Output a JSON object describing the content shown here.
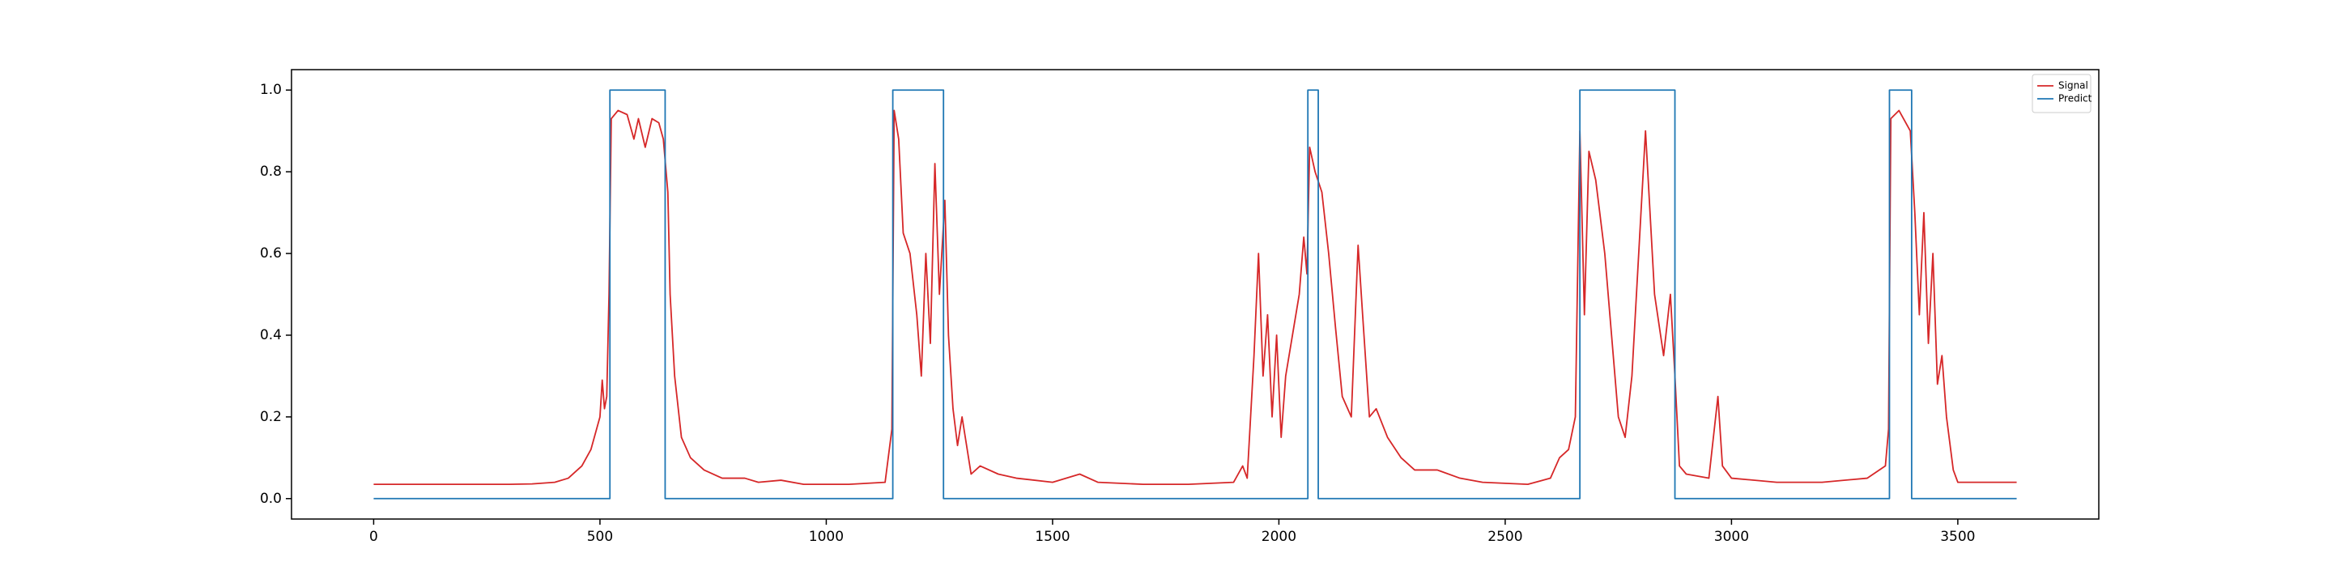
{
  "chart_data": {
    "type": "line",
    "xlim": [
      -181.5,
      3811.5
    ],
    "xticks": [
      0,
      500,
      1000,
      1500,
      2000,
      2500,
      3000,
      3500
    ],
    "ylim": [
      -0.05,
      1.05
    ],
    "yticks": [
      {
        "value": 0,
        "label": "0.0"
      },
      {
        "value": 0.2,
        "label": "0.2"
      },
      {
        "value": 0.4,
        "label": "0.4"
      },
      {
        "value": 0.6,
        "label": "0.6"
      },
      {
        "value": 0.8,
        "label": "0.8"
      },
      {
        "value": 1,
        "label": "1.0"
      }
    ],
    "grid": false,
    "legend": "upper right",
    "series": [
      {
        "name": "Signal",
        "color": "#d62728",
        "x": [
          0,
          100,
          200,
          300,
          350,
          400,
          430,
          460,
          480,
          500,
          505,
          510,
          515,
          520,
          525,
          540,
          560,
          575,
          585,
          600,
          615,
          630,
          640,
          650,
          655,
          665,
          680,
          700,
          730,
          770,
          820,
          850,
          900,
          950,
          1050,
          1130,
          1145,
          1150,
          1160,
          1170,
          1185,
          1200,
          1210,
          1220,
          1230,
          1240,
          1250,
          1262,
          1270,
          1280,
          1290,
          1300,
          1320,
          1340,
          1380,
          1420,
          1500,
          1560,
          1600,
          1700,
          1800,
          1900,
          1920,
          1930,
          1945,
          1955,
          1965,
          1975,
          1985,
          1995,
          2005,
          2015,
          2030,
          2045,
          2055,
          2062,
          2068,
          2080,
          2095,
          2110,
          2125,
          2140,
          2160,
          2175,
          2185,
          2200,
          2215,
          2240,
          2270,
          2300,
          2350,
          2400,
          2450,
          2550,
          2600,
          2620,
          2640,
          2655,
          2665,
          2675,
          2685,
          2700,
          2720,
          2735,
          2750,
          2765,
          2780,
          2795,
          2810,
          2830,
          2850,
          2865,
          2875,
          2885,
          2900,
          2950,
          2970,
          2980,
          3000,
          3100,
          3200,
          3300,
          3340,
          3347,
          3352,
          3370,
          3395,
          3405,
          3415,
          3425,
          3435,
          3445,
          3455,
          3465,
          3475,
          3490,
          3500,
          3550,
          3630
        ],
        "values": [
          0.035,
          0.035,
          0.035,
          0.035,
          0.036,
          0.04,
          0.05,
          0.08,
          0.12,
          0.2,
          0.29,
          0.22,
          0.25,
          0.5,
          0.93,
          0.95,
          0.94,
          0.88,
          0.93,
          0.86,
          0.93,
          0.92,
          0.88,
          0.75,
          0.5,
          0.3,
          0.15,
          0.1,
          0.07,
          0.05,
          0.05,
          0.04,
          0.045,
          0.035,
          0.035,
          0.04,
          0.17,
          0.95,
          0.88,
          0.65,
          0.6,
          0.45,
          0.3,
          0.6,
          0.38,
          0.82,
          0.5,
          0.73,
          0.4,
          0.22,
          0.13,
          0.2,
          0.06,
          0.08,
          0.06,
          0.05,
          0.04,
          0.06,
          0.04,
          0.035,
          0.035,
          0.04,
          0.08,
          0.05,
          0.35,
          0.6,
          0.3,
          0.45,
          0.2,
          0.4,
          0.15,
          0.3,
          0.4,
          0.5,
          0.64,
          0.55,
          0.86,
          0.8,
          0.75,
          0.6,
          0.42,
          0.25,
          0.2,
          0.62,
          0.45,
          0.2,
          0.22,
          0.15,
          0.1,
          0.07,
          0.07,
          0.05,
          0.04,
          0.035,
          0.05,
          0.1,
          0.12,
          0.2,
          0.9,
          0.45,
          0.85,
          0.78,
          0.6,
          0.4,
          0.2,
          0.15,
          0.3,
          0.6,
          0.9,
          0.5,
          0.35,
          0.5,
          0.3,
          0.08,
          0.06,
          0.05,
          0.25,
          0.08,
          0.05,
          0.04,
          0.04,
          0.05,
          0.08,
          0.17,
          0.93,
          0.95,
          0.9,
          0.7,
          0.45,
          0.7,
          0.38,
          0.6,
          0.28,
          0.35,
          0.2,
          0.07,
          0.04,
          0.04,
          0.04
        ]
      },
      {
        "name": "Predict",
        "color": "#1f77b4",
        "x": [
          0,
          522,
          522,
          644,
          644,
          1147,
          1147,
          1259,
          1259,
          2064,
          2064,
          2087,
          2087,
          2665,
          2665,
          2875,
          2875,
          3349,
          3349,
          3398,
          3398,
          3630
        ],
        "values": [
          0,
          0,
          1,
          1,
          0,
          0,
          1,
          1,
          0,
          0,
          1,
          1,
          0,
          0,
          1,
          1,
          0,
          0,
          1,
          1,
          0,
          0
        ]
      }
    ]
  }
}
